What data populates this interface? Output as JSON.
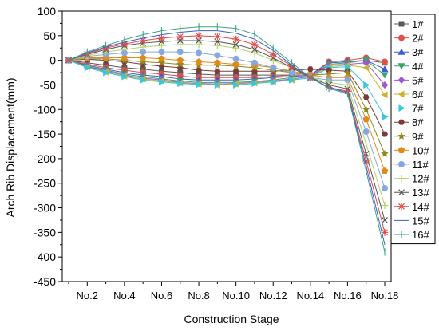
{
  "chart_data": {
    "type": "line",
    "xlabel": "Construction Stage",
    "ylabel": "Arch Rib Displacement(mm)",
    "ylim": [
      -450,
      100
    ],
    "xlim": [
      1,
      18
    ],
    "x": [
      1,
      2,
      3,
      4,
      5,
      6,
      7,
      8,
      9,
      10,
      11,
      12,
      13,
      14,
      15,
      16,
      17,
      18
    ],
    "x_ticks": [
      {
        "x": 2,
        "label": "No.2"
      },
      {
        "x": 4,
        "label": "No.4"
      },
      {
        "x": 6,
        "label": "No.6"
      },
      {
        "x": 8,
        "label": "No.8"
      },
      {
        "x": 10,
        "label": "No.10"
      },
      {
        "x": 12,
        "label": "No.12"
      },
      {
        "x": 14,
        "label": "No.14"
      },
      {
        "x": 16,
        "label": "No.16"
      },
      {
        "x": 18,
        "label": "No.18"
      }
    ],
    "y_ticks": [
      100,
      50,
      0,
      -50,
      -100,
      -150,
      -200,
      -250,
      -300,
      -350,
      -400,
      -450
    ],
    "y_tick_labels": [
      "100",
      "50",
      "0",
      "-50",
      "-100",
      "-150",
      "-200",
      "-250",
      "-300",
      "-350",
      "-400",
      "-450"
    ],
    "grid": false,
    "legend_position": "right",
    "series": [
      {
        "name": "1#",
        "color": "#595959",
        "marker": "square",
        "values": [
          0,
          -5,
          -10,
          -15,
          -18,
          -22,
          -25,
          -28,
          -30,
          -30,
          -30,
          -30,
          -30,
          -30,
          -5,
          -3,
          0,
          -5
        ]
      },
      {
        "name": "2#",
        "color": "#e0504a",
        "marker": "circle",
        "values": [
          0,
          -8,
          -15,
          -20,
          -25,
          -28,
          -32,
          -35,
          -35,
          -35,
          -35,
          -33,
          -30,
          -30,
          -3,
          0,
          5,
          -3
        ]
      },
      {
        "name": "3#",
        "color": "#3a5fcd",
        "marker": "triangle-up",
        "values": [
          0,
          -10,
          -18,
          -25,
          -30,
          -33,
          -38,
          -40,
          -40,
          -40,
          -38,
          -35,
          -33,
          -30,
          -5,
          -3,
          0,
          -18
        ]
      },
      {
        "name": "4#",
        "color": "#3aa26e",
        "marker": "triangle-down",
        "values": [
          0,
          -12,
          -20,
          -28,
          -33,
          -38,
          -42,
          -45,
          -45,
          -45,
          -43,
          -40,
          -35,
          -32,
          -8,
          -5,
          0,
          -30
        ]
      },
      {
        "name": "5#",
        "color": "#9b59d0",
        "marker": "diamond",
        "values": [
          0,
          -13,
          -22,
          -30,
          -36,
          -40,
          -45,
          -47,
          -48,
          -47,
          -45,
          -42,
          -38,
          -33,
          -10,
          -8,
          -5,
          -50
        ]
      },
      {
        "name": "6#",
        "color": "#c9b52f",
        "marker": "triangle-left",
        "values": [
          0,
          -14,
          -24,
          -32,
          -38,
          -42,
          -46,
          -48,
          -50,
          -48,
          -46,
          -43,
          -40,
          -35,
          -13,
          -10,
          -15,
          -70
        ]
      },
      {
        "name": "7#",
        "color": "#32c8e0",
        "marker": "triangle-right",
        "values": [
          0,
          -15,
          -25,
          -33,
          -40,
          -44,
          -47,
          -49,
          -50,
          -50,
          -47,
          -44,
          -40,
          -36,
          -15,
          -13,
          -50,
          -115
        ]
      },
      {
        "name": "8#",
        "color": "#7a3b3b",
        "marker": "hexagon",
        "values": [
          0,
          2,
          0,
          -3,
          -8,
          -12,
          -15,
          -20,
          -22,
          -22,
          -22,
          -22,
          -20,
          -18,
          -20,
          -22,
          -75,
          -150
        ]
      },
      {
        "name": "9#",
        "color": "#8a8a1f",
        "marker": "star",
        "values": [
          0,
          3,
          3,
          0,
          -3,
          -5,
          -8,
          -10,
          -10,
          -12,
          -15,
          -20,
          -25,
          -30,
          -28,
          -25,
          -100,
          -190
        ]
      },
      {
        "name": "10#",
        "color": "#e08a1a",
        "marker": "pentagon",
        "values": [
          0,
          5,
          5,
          5,
          5,
          3,
          0,
          -3,
          -5,
          -8,
          -10,
          -15,
          -22,
          -30,
          -35,
          -35,
          -120,
          -225
        ]
      },
      {
        "name": "11#",
        "color": "#86a8e0",
        "marker": "circle",
        "values": [
          0,
          8,
          12,
          15,
          17,
          17,
          17,
          15,
          10,
          3,
          -5,
          -15,
          -25,
          -35,
          -40,
          -40,
          -145,
          -260
        ]
      },
      {
        "name": "12#",
        "color": "#b5d46a",
        "marker": "plus",
        "values": [
          0,
          10,
          17,
          22,
          27,
          30,
          32,
          32,
          30,
          25,
          15,
          0,
          -15,
          -35,
          -45,
          -50,
          -170,
          -295
        ]
      },
      {
        "name": "13#",
        "color": "#555555",
        "marker": "x",
        "values": [
          0,
          12,
          22,
          30,
          35,
          38,
          40,
          40,
          38,
          32,
          22,
          5,
          -15,
          -35,
          -50,
          -58,
          -190,
          -325
        ]
      },
      {
        "name": "14#",
        "color": "#e04a4a",
        "marker": "asterisk",
        "values": [
          0,
          13,
          25,
          33,
          40,
          45,
          48,
          50,
          48,
          43,
          32,
          12,
          -12,
          -35,
          -55,
          -63,
          -205,
          -350
        ]
      },
      {
        "name": "15#",
        "color": "#3a5fcd",
        "marker": "none",
        "values": [
          0,
          15,
          27,
          37,
          45,
          52,
          57,
          60,
          60,
          55,
          43,
          20,
          -10,
          -35,
          -55,
          -66,
          -215,
          -375
        ]
      },
      {
        "name": "16#",
        "color": "#3aa28a",
        "marker": "tick",
        "values": [
          0,
          17,
          30,
          42,
          52,
          60,
          65,
          68,
          68,
          65,
          53,
          25,
          -5,
          -35,
          -57,
          -68,
          -225,
          -390
        ]
      }
    ]
  }
}
